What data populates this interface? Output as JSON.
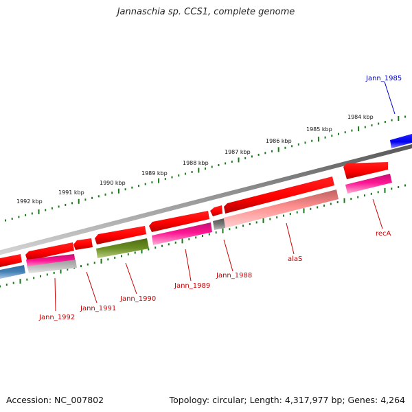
{
  "title": "Jannaschia sp. CCS1, complete genome",
  "footer": {
    "accession": "Accession: NC_007802",
    "info": "Topology: circular; Length: 4,317,977 bp; Genes: 4,264"
  },
  "colors": {
    "backbone": "#888888",
    "tick": "#1a7a1a",
    "label_red": "#cc0000",
    "label_blue": "#0000cc"
  },
  "scale": {
    "unit": "kbp",
    "ticks": [
      {
        "value": 1984,
        "label": "1984 kbp"
      },
      {
        "value": 1985,
        "label": "1985 kbp"
      },
      {
        "value": 1986,
        "label": "1986 kbp"
      },
      {
        "value": 1987,
        "label": "1987 kbp"
      },
      {
        "value": 1988,
        "label": "1988 kbp"
      },
      {
        "value": 1989,
        "label": "1989 kbp"
      },
      {
        "value": 1990,
        "label": "1990 kbp"
      },
      {
        "value": 1991,
        "label": "1991 kbp"
      },
      {
        "value": 1992,
        "label": "1992 kbp"
      }
    ]
  },
  "genes": [
    {
      "label": "Jann_1985",
      "color": "#0000cc",
      "label_color": "#0000cc"
    },
    {
      "label": "recA",
      "color": "#ff1493",
      "label_color": "#cc0000"
    },
    {
      "label": "alaS",
      "color": "#ff9090",
      "label_color": "#cc0000"
    },
    {
      "label": "Jann_1988",
      "color": "#777777",
      "label_color": "#cc0000"
    },
    {
      "label": "Jann_1989",
      "color": "#ff1493",
      "label_color": "#cc0000"
    },
    {
      "label": "Jann_1990",
      "color": "#6b8e23",
      "label_color": "#cc0000"
    },
    {
      "label": "Jann_1991",
      "color": "#ff0000",
      "label_color": "#cc0000"
    },
    {
      "label": "Jann_1992",
      "color": "#ff1493",
      "label_color": "#cc0000"
    }
  ]
}
